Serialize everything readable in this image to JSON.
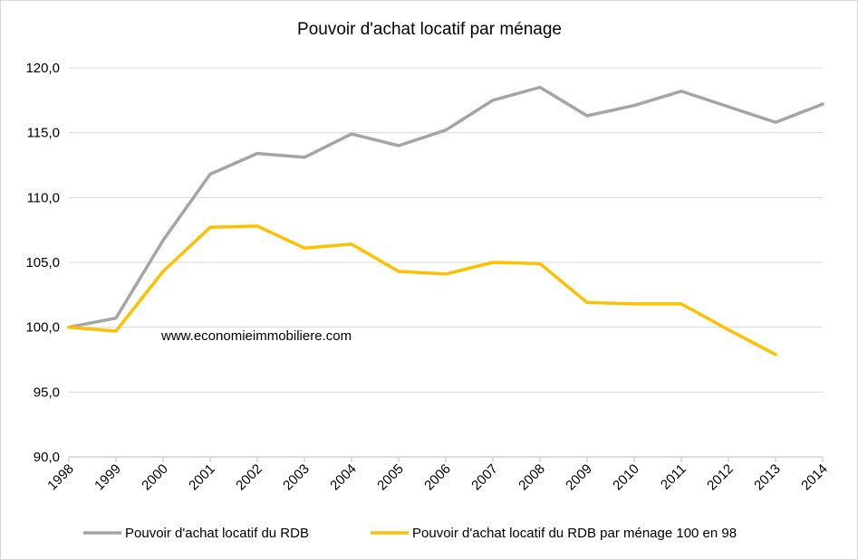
{
  "chart_data": {
    "type": "line",
    "title": "Pouvoir d'achat locatif par ménage",
    "xlabel": "",
    "ylabel": "",
    "ylim": [
      90,
      120
    ],
    "y_ticks": [
      "90,0",
      "95,0",
      "100,0",
      "105,0",
      "110,0",
      "115,0",
      "120,0"
    ],
    "categories": [
      "1998",
      "1999",
      "2000",
      "2001",
      "2002",
      "2003",
      "2004",
      "2005",
      "2006",
      "2007",
      "2008",
      "2009",
      "2010",
      "2011",
      "2012",
      "2013",
      "2014"
    ],
    "grid": true,
    "legend_position": "bottom",
    "annotation": "www.economieimmobiliere.com",
    "series": [
      {
        "name": "Pouvoir d'achat locatif du RDB",
        "color": "#a5a5a5",
        "values": [
          100.0,
          100.7,
          106.7,
          111.8,
          113.4,
          113.1,
          114.9,
          114.0,
          115.2,
          117.5,
          118.5,
          116.3,
          117.1,
          118.2,
          117.0,
          115.8,
          117.2
        ]
      },
      {
        "name": "Pouvoir d'achat locatif du RDB par ménage 100 en 98",
        "color": "#ffc000",
        "values": [
          100.0,
          99.7,
          104.3,
          107.7,
          107.8,
          106.1,
          106.4,
          104.3,
          104.1,
          105.0,
          104.9,
          101.9,
          101.8,
          101.8,
          99.8,
          97.9,
          null
        ]
      }
    ]
  }
}
